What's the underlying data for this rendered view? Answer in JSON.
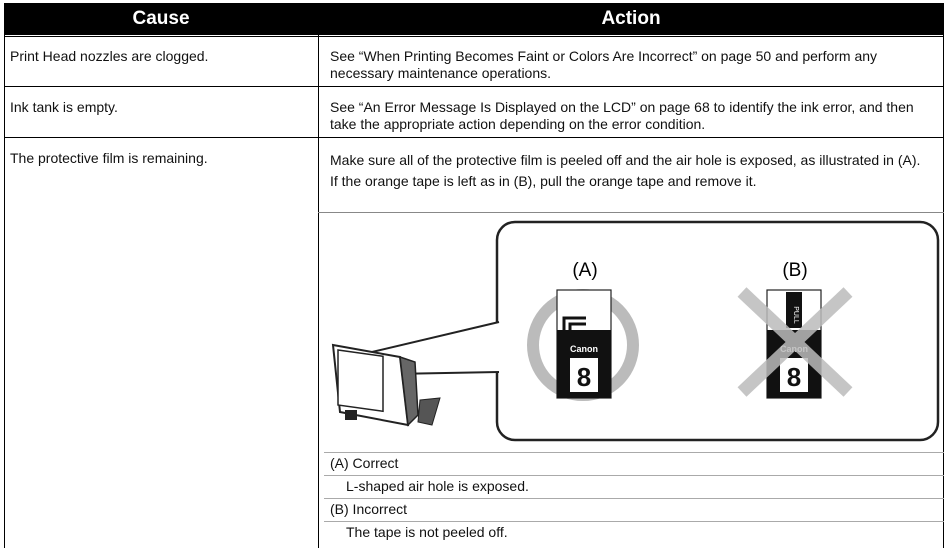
{
  "table": {
    "header": [
      "Cause",
      "Action"
    ],
    "rows": [
      [
        "Print Head nozzles are clogged.",
        "See “When Printing Becomes Faint or Colors Are Incorrect” on page 50 and perform any necessary maintenance operations."
      ],
      [
        "Ink tank is empty.",
        "See “An Error Message Is Displayed on the LCD” on page 68 to identify the ink error, and then take the appropriate action depending on the error condition."
      ],
      [
        "The protective film is remaining.",
        "Make sure all of the protective film is peeled off and the air hole is exposed, as illustrated in (A). If the orange tape is left as in (B), pull the orange tape and remove it."
      ]
    ]
  },
  "illustration": {
    "labels": [
      "(A)",
      "(B)"
    ],
    "brand": "Canon",
    "number": "8",
    "tape": "PULL"
  },
  "notes": [
    {
      "label": "(A) Correct",
      "text": "L-shaped air hole is exposed."
    },
    {
      "label": "(B) Incorrect",
      "text": "The tape is not peeled off."
    }
  ]
}
